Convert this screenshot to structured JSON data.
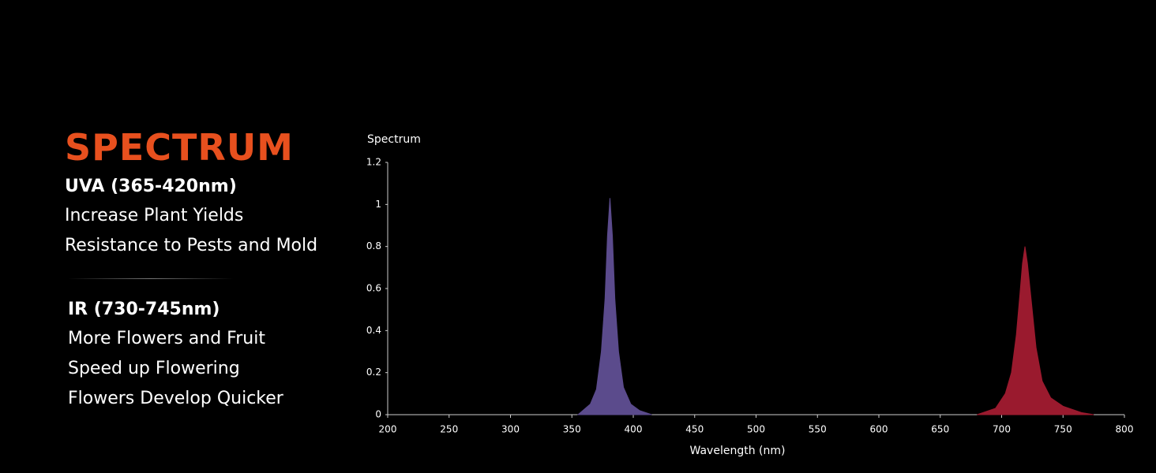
{
  "panel": {
    "heading": "SPECTRUM",
    "sections": [
      {
        "title": "UVA (365-420nm)",
        "lines": [
          "Increase Plant Yields",
          "Resistance to Pests and Mold"
        ]
      },
      {
        "title": "IR (730-745nm)",
        "lines": [
          "More Flowers and Fruit",
          "Speed up Flowering",
          "Flowers Develop Quicker"
        ]
      }
    ]
  },
  "chart_data": {
    "type": "area",
    "y_label": "Spectrum",
    "x_label": "Wavelength (nm)",
    "xlim": [
      200,
      800
    ],
    "xticks": [
      200,
      250,
      300,
      350,
      400,
      450,
      500,
      550,
      600,
      650,
      700,
      750,
      800
    ],
    "ylim": [
      0,
      1.2
    ],
    "yticks": [
      0,
      0.2,
      0.4,
      0.6,
      0.8,
      1,
      1.2
    ],
    "series": [
      {
        "name": "UVA",
        "color": "#5b4b8c",
        "x": [
          355,
          365,
          370,
          374,
          377,
          379,
          381,
          383,
          385,
          388,
          392,
          398,
          405,
          415
        ],
        "values": [
          0,
          0.05,
          0.12,
          0.3,
          0.55,
          0.85,
          1.03,
          0.85,
          0.55,
          0.3,
          0.13,
          0.05,
          0.02,
          0
        ]
      },
      {
        "name": "IR",
        "color": "#9a1a2e",
        "x": [
          680,
          695,
          703,
          708,
          712,
          715,
          717,
          719,
          721,
          724,
          728,
          733,
          740,
          750,
          765,
          775
        ],
        "values": [
          0,
          0.03,
          0.1,
          0.2,
          0.38,
          0.58,
          0.72,
          0.8,
          0.72,
          0.55,
          0.32,
          0.16,
          0.08,
          0.04,
          0.01,
          0
        ]
      }
    ]
  }
}
